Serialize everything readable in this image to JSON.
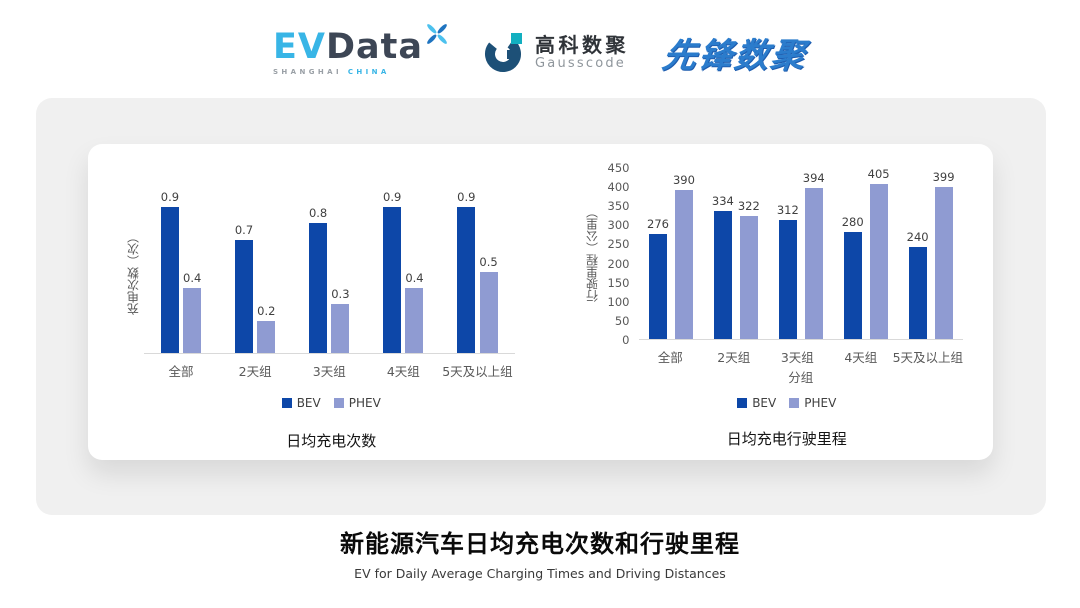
{
  "header": {
    "evdata_logo": {
      "part1": "EV",
      "part2": "Data",
      "tagline_left": "SHANGHAI",
      "tagline_right": "CHINA"
    },
    "gausscode_logo": {
      "name_cn": "高科数聚",
      "name_en": "Gausscode"
    },
    "pioneer_logo": {
      "name": "先锋数聚"
    }
  },
  "footer": {
    "title": "新能源汽车日均充电次数和行驶里程",
    "subtitle": "EV for Daily Average Charging Times and Driving Distances"
  },
  "colors": {
    "bev": "#0D47A8",
    "phev": "#8F9BD2",
    "panel_bg": "#F0F0F0",
    "card_bg": "#FFFFFF",
    "axis_line": "#D9D9D9",
    "tick_text": "#595959",
    "label_text": "#404040",
    "logo_blue": "#38B5E6",
    "logo_navy": "#3D4655",
    "pioneer_blue": "#2B7CCC"
  },
  "chart_data": [
    {
      "type": "bar",
      "title": "日均充电次数",
      "ylabel": "充电次数（次）",
      "xlabel": "",
      "categories": [
        "全部",
        "2天组",
        "3天组",
        "4天组",
        "5天及以上组"
      ],
      "series": [
        {
          "name": "BEV",
          "color": "#0D47A8",
          "values": [
            0.9,
            0.7,
            0.8,
            0.9,
            0.9
          ]
        },
        {
          "name": "PHEV",
          "color": "#8F9BD2",
          "values": [
            0.4,
            0.2,
            0.3,
            0.4,
            0.5
          ]
        }
      ],
      "ylim": [
        0,
        1.0
      ],
      "yticks": [],
      "grid": false,
      "legend_position": "bottom",
      "data_labels": true
    },
    {
      "type": "bar",
      "title": "日均充电行驶里程",
      "ylabel": "行驶里程（公里）",
      "xlabel": "分组",
      "categories": [
        "全部",
        "2天组",
        "3天组",
        "4天组",
        "5天及以上组"
      ],
      "series": [
        {
          "name": "BEV",
          "color": "#0D47A8",
          "values": [
            276,
            334,
            312,
            280,
            240
          ]
        },
        {
          "name": "PHEV",
          "color": "#8F9BD2",
          "values": [
            390,
            322,
            394,
            405,
            399
          ]
        }
      ],
      "ylim": [
        0,
        450
      ],
      "yticks": [
        0,
        50,
        100,
        150,
        200,
        250,
        300,
        350,
        400,
        450
      ],
      "grid": false,
      "legend_position": "bottom",
      "data_labels": true
    }
  ]
}
